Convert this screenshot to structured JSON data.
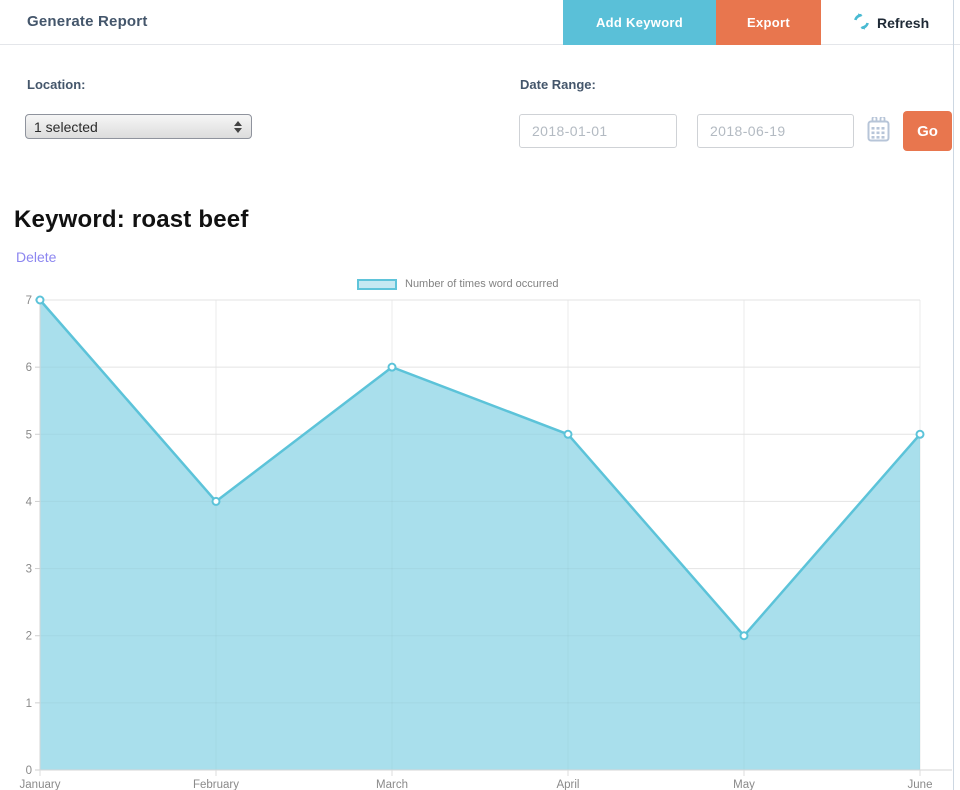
{
  "header": {
    "title": "Generate Report",
    "add_keyword_label": "Add Keyword",
    "export_label": "Export",
    "refresh_label": "Refresh"
  },
  "filters": {
    "location_label": "Location:",
    "location_value": "1 selected",
    "date_range_label": "Date Range:",
    "date_from": "2018-01-01",
    "date_to": "2018-06-19",
    "go_label": "Go"
  },
  "keyword": {
    "heading": "Keyword: roast beef",
    "delete_label": "Delete"
  },
  "chart_data": {
    "type": "area",
    "title": "",
    "categories": [
      "January",
      "February",
      "March",
      "April",
      "May",
      "June"
    ],
    "values": [
      7,
      4,
      6,
      5,
      2,
      5
    ],
    "legend": "Number of times word occurred",
    "legend_position": "top",
    "xlabel": "",
    "ylabel": "",
    "ylim": [
      0,
      7
    ],
    "yticks": [
      0,
      1,
      2,
      3,
      4,
      5,
      6,
      7
    ],
    "grid": true,
    "colors": {
      "fill": "#a9dfec",
      "line": "#5cc3d9",
      "point_fill": "#ffffff"
    }
  },
  "colors": {
    "accent_teal": "#5ac0d8",
    "accent_orange": "#e8764e",
    "heading_slate": "#44566b",
    "link_purple": "#8c86f0",
    "tick_gray": "#8a8a8a"
  }
}
